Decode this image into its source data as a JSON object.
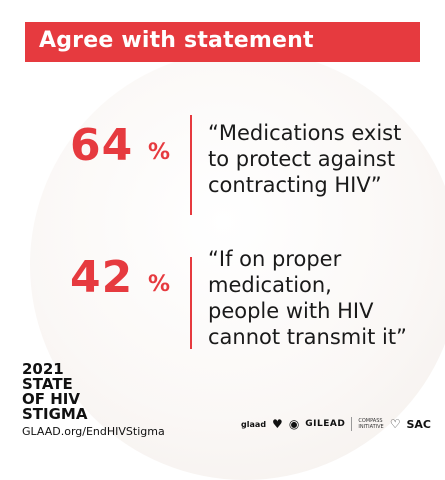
{
  "banner": {
    "title": "Agree with statement"
  },
  "stats": [
    {
      "value": "64",
      "unit": "%",
      "quote_lines": [
        "“Medications exist",
        "to protect against",
        "contracting HIV”"
      ]
    },
    {
      "value": "42",
      "unit": "%",
      "quote_lines": [
        "“If on proper",
        "medication,",
        "people with HIV",
        "cannot transmit it”"
      ]
    }
  ],
  "report": {
    "lines": [
      "2021",
      "STATE",
      "OF HIV",
      "STIGMA"
    ],
    "site": "GLAAD.org/EndHIVStigma"
  },
  "sponsors": {
    "glaad": "glaad",
    "gilead": "GILEAD",
    "compass": [
      "COMPASS",
      "INITIATIVE"
    ],
    "sac": "SAC"
  },
  "colors": {
    "accent": "#e63a3f",
    "text": "#1a1a1a"
  }
}
